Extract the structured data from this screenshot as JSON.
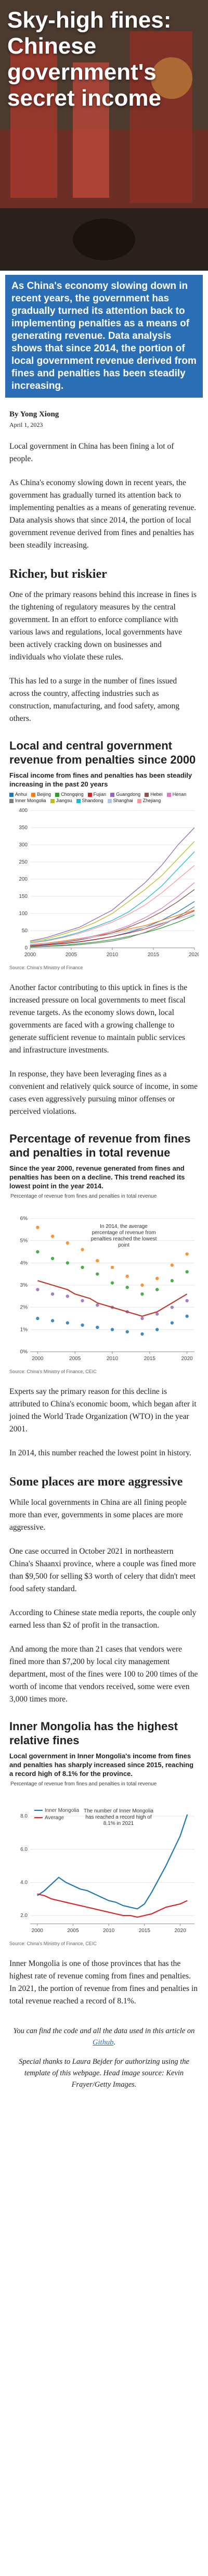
{
  "hero": {
    "title": "Sky-high fines: Chinese government's secret income",
    "subtitle": "As China's economy slowing down in recent years, the government has gradually turned its attention back to implementing penalties as a means of generating revenue. Data analysis shows that since 2014, the portion of local government revenue derived from fines and penalties has been steadily increasing."
  },
  "byline": {
    "author": "By Yong Xiong",
    "date": "April 1, 2023"
  },
  "intro": [
    "Local government in China has been fining a lot of people.",
    "As China's economy slowing down in recent years, the government has gradually turned its attention back to implementing penalties as a means of generating revenue. Data analysis shows that since 2014, the portion of local government revenue derived from fines and penalties has been steadily increasing."
  ],
  "section1": {
    "heading": "Richer, but riskier",
    "paragraphs": [
      "One of the primary reasons behind this increase in fines is the tightening of regulatory measures by the central government. In an effort to enforce compliance with various laws and regulations, local governments have been actively cracking down on businesses and individuals who violate these rules.",
      "This has led to a surge in the number of fines issued across the country, affecting industries such as construction, manufacturing, and food safety, among others."
    ]
  },
  "after_chart1": [
    "Another factor contributing to this uptick in fines is the increased pressure on local governments to meet fiscal revenue targets. As the economy slows down, local governments are faced with a growing challenge to generate sufficient revenue to maintain public services and infrastructure investments.",
    "In response, they have been leveraging fines as a convenient and relatively quick source of income, in some cases even aggressively pursuing minor offenses or perceived violations."
  ],
  "after_chart2": [
    "Experts say the primary reason for this decline is attributed to China's economic boom, which began after it joined the World Trade Organization (WTO) in the year 2001.",
    "In 2014, this number reached the lowest point in history."
  ],
  "section2": {
    "heading": "Some places are more aggressive",
    "paragraphs": [
      "While local governments in China are all fining people more than ever, governments in some places are more aggressive.",
      "One case occurred in October 2021 in northeastern China's Shaanxi province, where a couple was fined more than $9,500 for selling $3 worth of celery that didn't meet food safety standard.",
      "According to Chinese state media reports, the couple only earned less than $2 of profit in the transaction.",
      "And among the more than 21 cases that vendors were fined more than $7,200 by local city management department, most of the fines were 100 to 200 times of the worth of income that vendors received, some were even 3,000 times more."
    ]
  },
  "after_chart3": [
    "Inner Mongolia is one of those provinces that has the highest rate of revenue coming from fines and penalties. In 2021, the portion of revenue from fines and penalties in total revenue reached a record of 8.1%."
  ],
  "footer": {
    "code_note": "You can find the code and all the data used in this article on",
    "code_link": "Github",
    "code_end": ".",
    "thanks": "Special thanks to Laura Bejder for authorizing using the template of this webpage. Head image source: Kevin Frayer/Getty Images."
  },
  "chart_data": [
    {
      "type": "line",
      "title": "Local and central government revenue from penalties since 2000",
      "subtitle": "Fiscal income from fines and penalties has been steadily increasing in the past 20 years",
      "x": [
        2000,
        2002,
        2004,
        2006,
        2008,
        2010,
        2012,
        2014,
        2016,
        2018,
        2020
      ],
      "xlim": [
        2000,
        2020
      ],
      "xticks": [
        2000,
        2005,
        2010,
        2015,
        2020
      ],
      "ylim": [
        0,
        400
      ],
      "yticks": [
        0,
        50,
        100,
        150,
        200,
        250,
        300,
        350,
        400
      ],
      "grid": true,
      "series": [
        {
          "name": "Anhui",
          "color": "#1f77b4",
          "values": [
            5,
            8,
            12,
            17,
            24,
            33,
            45,
            60,
            80,
            105,
            135
          ]
        },
        {
          "name": "Beijing",
          "color": "#ff7f0e",
          "values": [
            10,
            14,
            20,
            27,
            35,
            44,
            55,
            65,
            80,
            95,
            110
          ]
        },
        {
          "name": "Chongqing",
          "color": "#2ca02c",
          "values": [
            3,
            5,
            8,
            12,
            17,
            24,
            33,
            44,
            58,
            75,
            95
          ]
        },
        {
          "name": "Fujian",
          "color": "#d62728",
          "values": [
            6,
            9,
            13,
            18,
            25,
            33,
            43,
            55,
            70,
            88,
            108
          ]
        },
        {
          "name": "Guangdong",
          "color": "#9467bd",
          "values": [
            20,
            30,
            45,
            60,
            85,
            110,
            150,
            190,
            240,
            300,
            350
          ]
        },
        {
          "name": "Hebei",
          "color": "#8c564b",
          "values": [
            7,
            11,
            16,
            23,
            32,
            44,
            60,
            80,
            105,
            135,
            170
          ]
        },
        {
          "name": "Henan",
          "color": "#e377c2",
          "values": [
            8,
            12,
            18,
            26,
            36,
            48,
            65,
            88,
            115,
            150,
            190
          ]
        },
        {
          "name": "Inner Mongolia",
          "color": "#7f7f7f",
          "values": [
            2,
            4,
            6,
            9,
            14,
            20,
            30,
            45,
            65,
            90,
            120
          ]
        },
        {
          "name": "Jiangsu",
          "color": "#bcbd22",
          "values": [
            18,
            26,
            40,
            55,
            75,
            100,
            135,
            170,
            210,
            260,
            310
          ]
        },
        {
          "name": "Shandong",
          "color": "#17becf",
          "values": [
            15,
            22,
            32,
            45,
            62,
            80,
            105,
            140,
            180,
            230,
            280
          ]
        },
        {
          "name": "Shanghai",
          "color": "#aec7e8",
          "values": [
            9,
            13,
            18,
            25,
            32,
            40,
            50,
            60,
            72,
            85,
            98
          ]
        },
        {
          "name": "Zhejiang",
          "color": "#ff9896",
          "values": [
            14,
            20,
            30,
            42,
            58,
            75,
            98,
            125,
            160,
            200,
            240
          ]
        }
      ],
      "source": "Source: China's Ministry of Finance"
    },
    {
      "type": "scatter",
      "title": "Percentage of revenue from fines and penalties in total revenue",
      "subtitle": "Since the year 2000, revenue generated from fines and penalties has been on a decline. This trend reached its lowest point in the year 2014.",
      "ylabel": "Percentage of revenue from fines and penalties in total revenue",
      "annotation": "In 2014, the average percentage of revenue from penalties reached the lowest point",
      "xlim": [
        1999,
        2021
      ],
      "xticks": [
        2000,
        2005,
        2010,
        2015,
        2020
      ],
      "ylim": [
        0,
        6
      ],
      "yticks": [
        {
          "value": 0,
          "label": "0%"
        },
        {
          "value": 1,
          "label": "1%"
        },
        {
          "value": 2,
          "label": "2%"
        },
        {
          "value": 3,
          "label": "3%"
        },
        {
          "value": 4,
          "label": "4%"
        },
        {
          "value": 5,
          "label": "5%"
        },
        {
          "value": 6,
          "label": "6%"
        }
      ],
      "grid": true,
      "series": [
        {
          "color": "#ff7f0e",
          "x": [
            2000,
            2002,
            2004,
            2006,
            2008,
            2010,
            2012,
            2014,
            2016,
            2018,
            2020
          ],
          "y": [
            5.6,
            5.2,
            4.9,
            4.6,
            4.1,
            3.8,
            3.4,
            3.0,
            3.3,
            3.9,
            4.4
          ]
        },
        {
          "color": "#2ca02c",
          "x": [
            2000,
            2002,
            2004,
            2006,
            2008,
            2010,
            2012,
            2014,
            2016,
            2018,
            2020
          ],
          "y": [
            4.5,
            4.2,
            4.0,
            3.8,
            3.5,
            3.1,
            2.9,
            2.6,
            2.8,
            3.2,
            3.6
          ]
        },
        {
          "color": "#9467bd",
          "x": [
            2000,
            2002,
            2004,
            2006,
            2008,
            2010,
            2012,
            2014,
            2016,
            2018,
            2020
          ],
          "y": [
            2.8,
            2.6,
            2.5,
            2.3,
            2.1,
            2.0,
            1.8,
            1.5,
            1.7,
            2.0,
            2.3
          ]
        },
        {
          "color": "#1f77b4",
          "x": [
            2000,
            2002,
            2004,
            2006,
            2008,
            2010,
            2012,
            2014,
            2016,
            2018,
            2020
          ],
          "y": [
            1.5,
            1.4,
            1.3,
            1.2,
            1.1,
            1.0,
            0.9,
            0.8,
            1.0,
            1.3,
            1.6
          ]
        },
        {
          "color": "#c0392b",
          "x": [
            2000,
            2001,
            2002,
            2003,
            2004,
            2005,
            2006,
            2007,
            2008,
            2009,
            2010,
            2011,
            2012,
            2013,
            2014,
            2015,
            2016,
            2017,
            2018,
            2019,
            2020
          ],
          "values": [
            3.2,
            3.1,
            3.0,
            2.9,
            2.8,
            2.6,
            2.5,
            2.4,
            2.2,
            2.1,
            2.0,
            1.9,
            1.8,
            1.7,
            1.6,
            1.7,
            1.8,
            2.0,
            2.2,
            2.4,
            2.6
          ]
        }
      ],
      "source": "Source: China's Ministry of Finance, CEIC"
    },
    {
      "type": "line",
      "title": "Inner Mongolia has the highest relative fines",
      "subtitle": "Local government in Inner Mongolia's income from fines and penalties has sharply increased since 2015, reaching a record high of 8.1% for the province.",
      "ylabel": "Percentage of revenue from fines and penalties in total revenue",
      "annotation": "The number of Inner Mongolia has reached a record high of 8.1% in 2021",
      "x": [
        2000,
        2001,
        2002,
        2003,
        2004,
        2005,
        2006,
        2007,
        2008,
        2009,
        2010,
        2011,
        2012,
        2013,
        2014,
        2015,
        2016,
        2017,
        2018,
        2019,
        2020,
        2021
      ],
      "xlim": [
        1999,
        2022
      ],
      "xticks": [
        2000,
        2005,
        2010,
        2015,
        2020
      ],
      "ylim": [
        1.5,
        8.6
      ],
      "yticks": [
        {
          "value": 2,
          "label": "2.0"
        },
        {
          "value": 4,
          "label": "4.0"
        },
        {
          "value": 6,
          "label": "6.0"
        },
        {
          "value": 8,
          "label": "8.0"
        }
      ],
      "grid": true,
      "legend": "top-left",
      "series": [
        {
          "name": "Inner Mongolia",
          "color": "#1f77b4",
          "values": [
            3.2,
            3.5,
            3.9,
            4.3,
            4.0,
            3.8,
            3.6,
            3.5,
            3.3,
            3.1,
            2.9,
            2.8,
            2.6,
            2.5,
            2.4,
            2.7,
            3.4,
            4.2,
            5.0,
            5.9,
            6.8,
            8.1
          ]
        },
        {
          "name": "Average",
          "color": "#d62728",
          "values": [
            3.3,
            3.2,
            3.0,
            2.9,
            2.8,
            2.7,
            2.6,
            2.5,
            2.4,
            2.3,
            2.2,
            2.1,
            2.0,
            2.0,
            1.9,
            2.0,
            2.1,
            2.3,
            2.5,
            2.6,
            2.7,
            2.9
          ]
        }
      ],
      "source": "Source: China's Ministry of Finance, CEIC"
    }
  ]
}
